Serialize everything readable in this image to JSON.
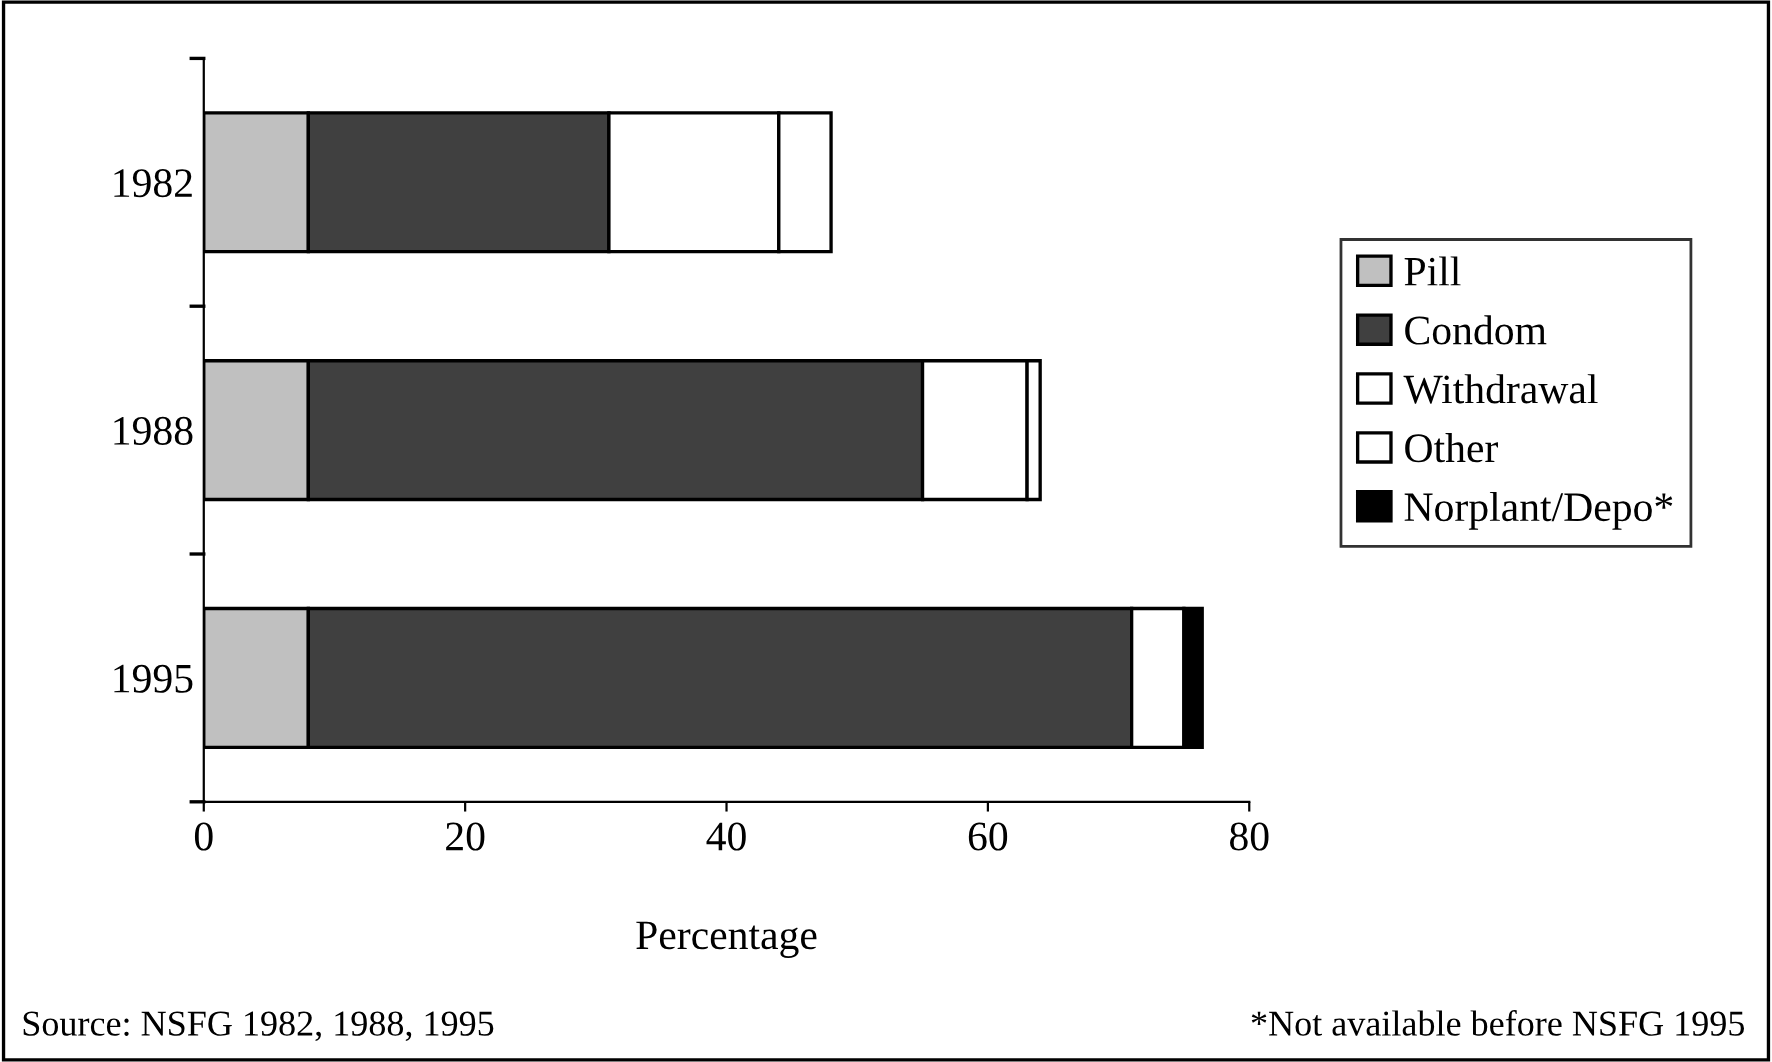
{
  "chart_data": {
    "type": "bar",
    "orientation": "horizontal",
    "stacked": true,
    "categories": [
      "1982",
      "1988",
      "1995"
    ],
    "series": [
      {
        "name": "Pill",
        "color": "#c0c0c0",
        "values": [
          8,
          8,
          8
        ]
      },
      {
        "name": "Condom",
        "color": "#404040",
        "values": [
          23,
          47,
          63
        ]
      },
      {
        "name": "Withdrawal",
        "color": "#ffffff",
        "values": [
          13,
          8,
          4
        ]
      },
      {
        "name": "Other",
        "color": "#ffffff",
        "values": [
          4,
          1,
          null
        ]
      },
      {
        "name": "Norplant/Depo*",
        "color": "#000000",
        "values": [
          null,
          null,
          1.4
        ]
      }
    ],
    "xlim": [
      0,
      80
    ],
    "xticks": [
      0,
      20,
      40,
      60,
      80
    ],
    "xlabel": "Percentage",
    "legend": "right",
    "grid": false,
    "annotations": [
      "Source: NSFG 1982, 1988, 1995",
      "*Not available before NSFG 1995"
    ]
  }
}
